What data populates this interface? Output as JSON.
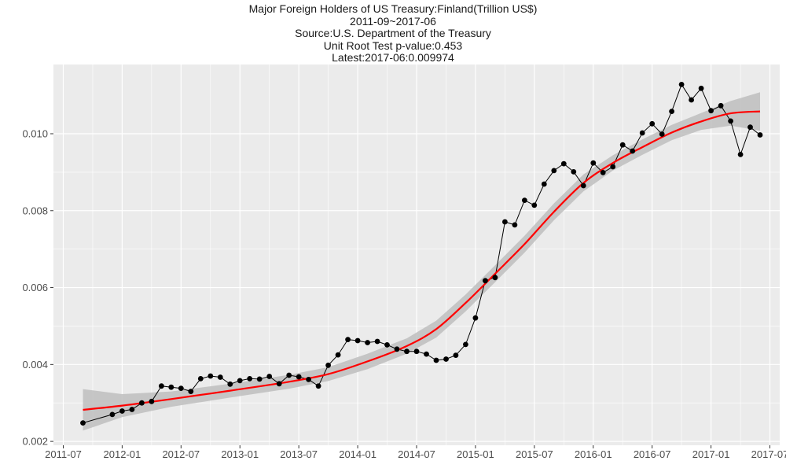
{
  "chart_data": {
    "type": "line",
    "title": "Major Foreign Holders of US Treasury:Finland(Trillion US$)",
    "subtitles": [
      "2011-09~2017-06",
      "Source:U.S. Department of the Treasury",
      "Unit Root Test p-value:0.453",
      "Latest:2017-06:0.009974"
    ],
    "xlabel": "",
    "ylabel": "",
    "x_ticks": [
      "2011-07",
      "2012-01",
      "2012-07",
      "2013-01",
      "2013-07",
      "2014-01",
      "2014-07",
      "2015-01",
      "2015-07",
      "2016-01",
      "2016-07",
      "2017-01",
      "2017-07"
    ],
    "y_ticks": [
      0.002,
      0.004,
      0.006,
      0.008,
      0.01
    ],
    "y_tick_labels": [
      "0.002",
      "0.004",
      "0.006",
      "0.008",
      "0.010"
    ],
    "xlim": [
      "2011-06",
      "2017-08"
    ],
    "ylim": [
      0.0019,
      0.0118
    ],
    "grid": true,
    "series": [
      {
        "line_color": "#000000",
        "points": [
          [
            "2011-09",
            0.00248
          ],
          [
            "2011-12",
            0.0027
          ],
          [
            "2012-01",
            0.00279
          ],
          [
            "2012-02",
            0.00283
          ],
          [
            "2012-03",
            0.003
          ],
          [
            "2012-04",
            0.00304
          ],
          [
            "2012-05",
            0.00344
          ],
          [
            "2012-06",
            0.00341
          ],
          [
            "2012-07",
            0.00338
          ],
          [
            "2012-08",
            0.0033
          ],
          [
            "2012-09",
            0.00363
          ],
          [
            "2012-10",
            0.0037
          ],
          [
            "2012-11",
            0.00367
          ],
          [
            "2012-12",
            0.00349
          ],
          [
            "2013-01",
            0.00358
          ],
          [
            "2013-02",
            0.00363
          ],
          [
            "2013-03",
            0.00362
          ],
          [
            "2013-04",
            0.00369
          ],
          [
            "2013-05",
            0.0035
          ],
          [
            "2013-06",
            0.00372
          ],
          [
            "2013-07",
            0.00368
          ],
          [
            "2013-08",
            0.00361
          ],
          [
            "2013-09",
            0.00344
          ],
          [
            "2013-10",
            0.00398
          ],
          [
            "2013-11",
            0.00425
          ],
          [
            "2013-12",
            0.00465
          ],
          [
            "2014-01",
            0.00462
          ],
          [
            "2014-02",
            0.00457
          ],
          [
            "2014-03",
            0.0046
          ],
          [
            "2014-04",
            0.00451
          ],
          [
            "2014-05",
            0.0044
          ],
          [
            "2014-06",
            0.00434
          ],
          [
            "2014-07",
            0.00434
          ],
          [
            "2014-08",
            0.00427
          ],
          [
            "2014-09",
            0.00411
          ],
          [
            "2014-10",
            0.00414
          ],
          [
            "2014-11",
            0.00424
          ],
          [
            "2014-12",
            0.00452
          ],
          [
            "2015-01",
            0.00521
          ],
          [
            "2015-02",
            0.00618
          ],
          [
            "2015-03",
            0.00626
          ],
          [
            "2015-04",
            0.00771
          ],
          [
            "2015-05",
            0.00763
          ],
          [
            "2015-06",
            0.00827
          ],
          [
            "2015-07",
            0.00814
          ],
          [
            "2015-08",
            0.00869
          ],
          [
            "2015-09",
            0.00904
          ],
          [
            "2015-10",
            0.00922
          ],
          [
            "2015-11",
            0.00901
          ],
          [
            "2015-12",
            0.00865
          ],
          [
            "2016-01",
            0.00924
          ],
          [
            "2016-02",
            0.00899
          ],
          [
            "2016-03",
            0.00914
          ],
          [
            "2016-04",
            0.00971
          ],
          [
            "2016-05",
            0.00955
          ],
          [
            "2016-06",
            0.01002
          ],
          [
            "2016-07",
            0.01026
          ],
          [
            "2016-08",
            0.00999
          ],
          [
            "2016-09",
            0.01058
          ],
          [
            "2016-10",
            0.01128
          ],
          [
            "2016-11",
            0.01088
          ],
          [
            "2016-12",
            0.01118
          ],
          [
            "2017-01",
            0.0106
          ],
          [
            "2017-02",
            0.01073
          ],
          [
            "2017-03",
            0.01033
          ],
          [
            "2017-04",
            0.00946
          ],
          [
            "2017-05",
            0.01017
          ],
          [
            "2017-06",
            0.00997
          ]
        ]
      },
      {
        "type": "smooth",
        "line_color": "#ff0000",
        "band_color": "#bebebe",
        "points": [
          [
            "2011-09",
            0.00282
          ],
          [
            "2012-01",
            0.00293
          ],
          [
            "2012-06",
            0.0031
          ],
          [
            "2012-12",
            0.00332
          ],
          [
            "2013-06",
            0.00355
          ],
          [
            "2013-10",
            0.00375
          ],
          [
            "2014-02",
            0.00408
          ],
          [
            "2014-06",
            0.00448
          ],
          [
            "2014-09",
            0.00492
          ],
          [
            "2014-12",
            0.0056
          ],
          [
            "2015-03",
            0.00636
          ],
          [
            "2015-06",
            0.00713
          ],
          [
            "2015-09",
            0.00797
          ],
          [
            "2015-12",
            0.00872
          ],
          [
            "2016-03",
            0.00924
          ],
          [
            "2016-06",
            0.00965
          ],
          [
            "2016-09",
            0.01003
          ],
          [
            "2016-12",
            0.01032
          ],
          [
            "2017-03",
            0.01053
          ],
          [
            "2017-06",
            0.01058
          ]
        ],
        "band_halfwidth": [
          0.00054,
          0.0003,
          0.0002,
          0.00018,
          0.00018,
          0.00018,
          0.0002,
          0.0002,
          0.00022,
          0.00022,
          0.00022,
          0.00022,
          0.00022,
          0.00022,
          0.0002,
          0.0002,
          0.0002,
          0.00022,
          0.00032,
          0.0005
        ]
      }
    ]
  }
}
